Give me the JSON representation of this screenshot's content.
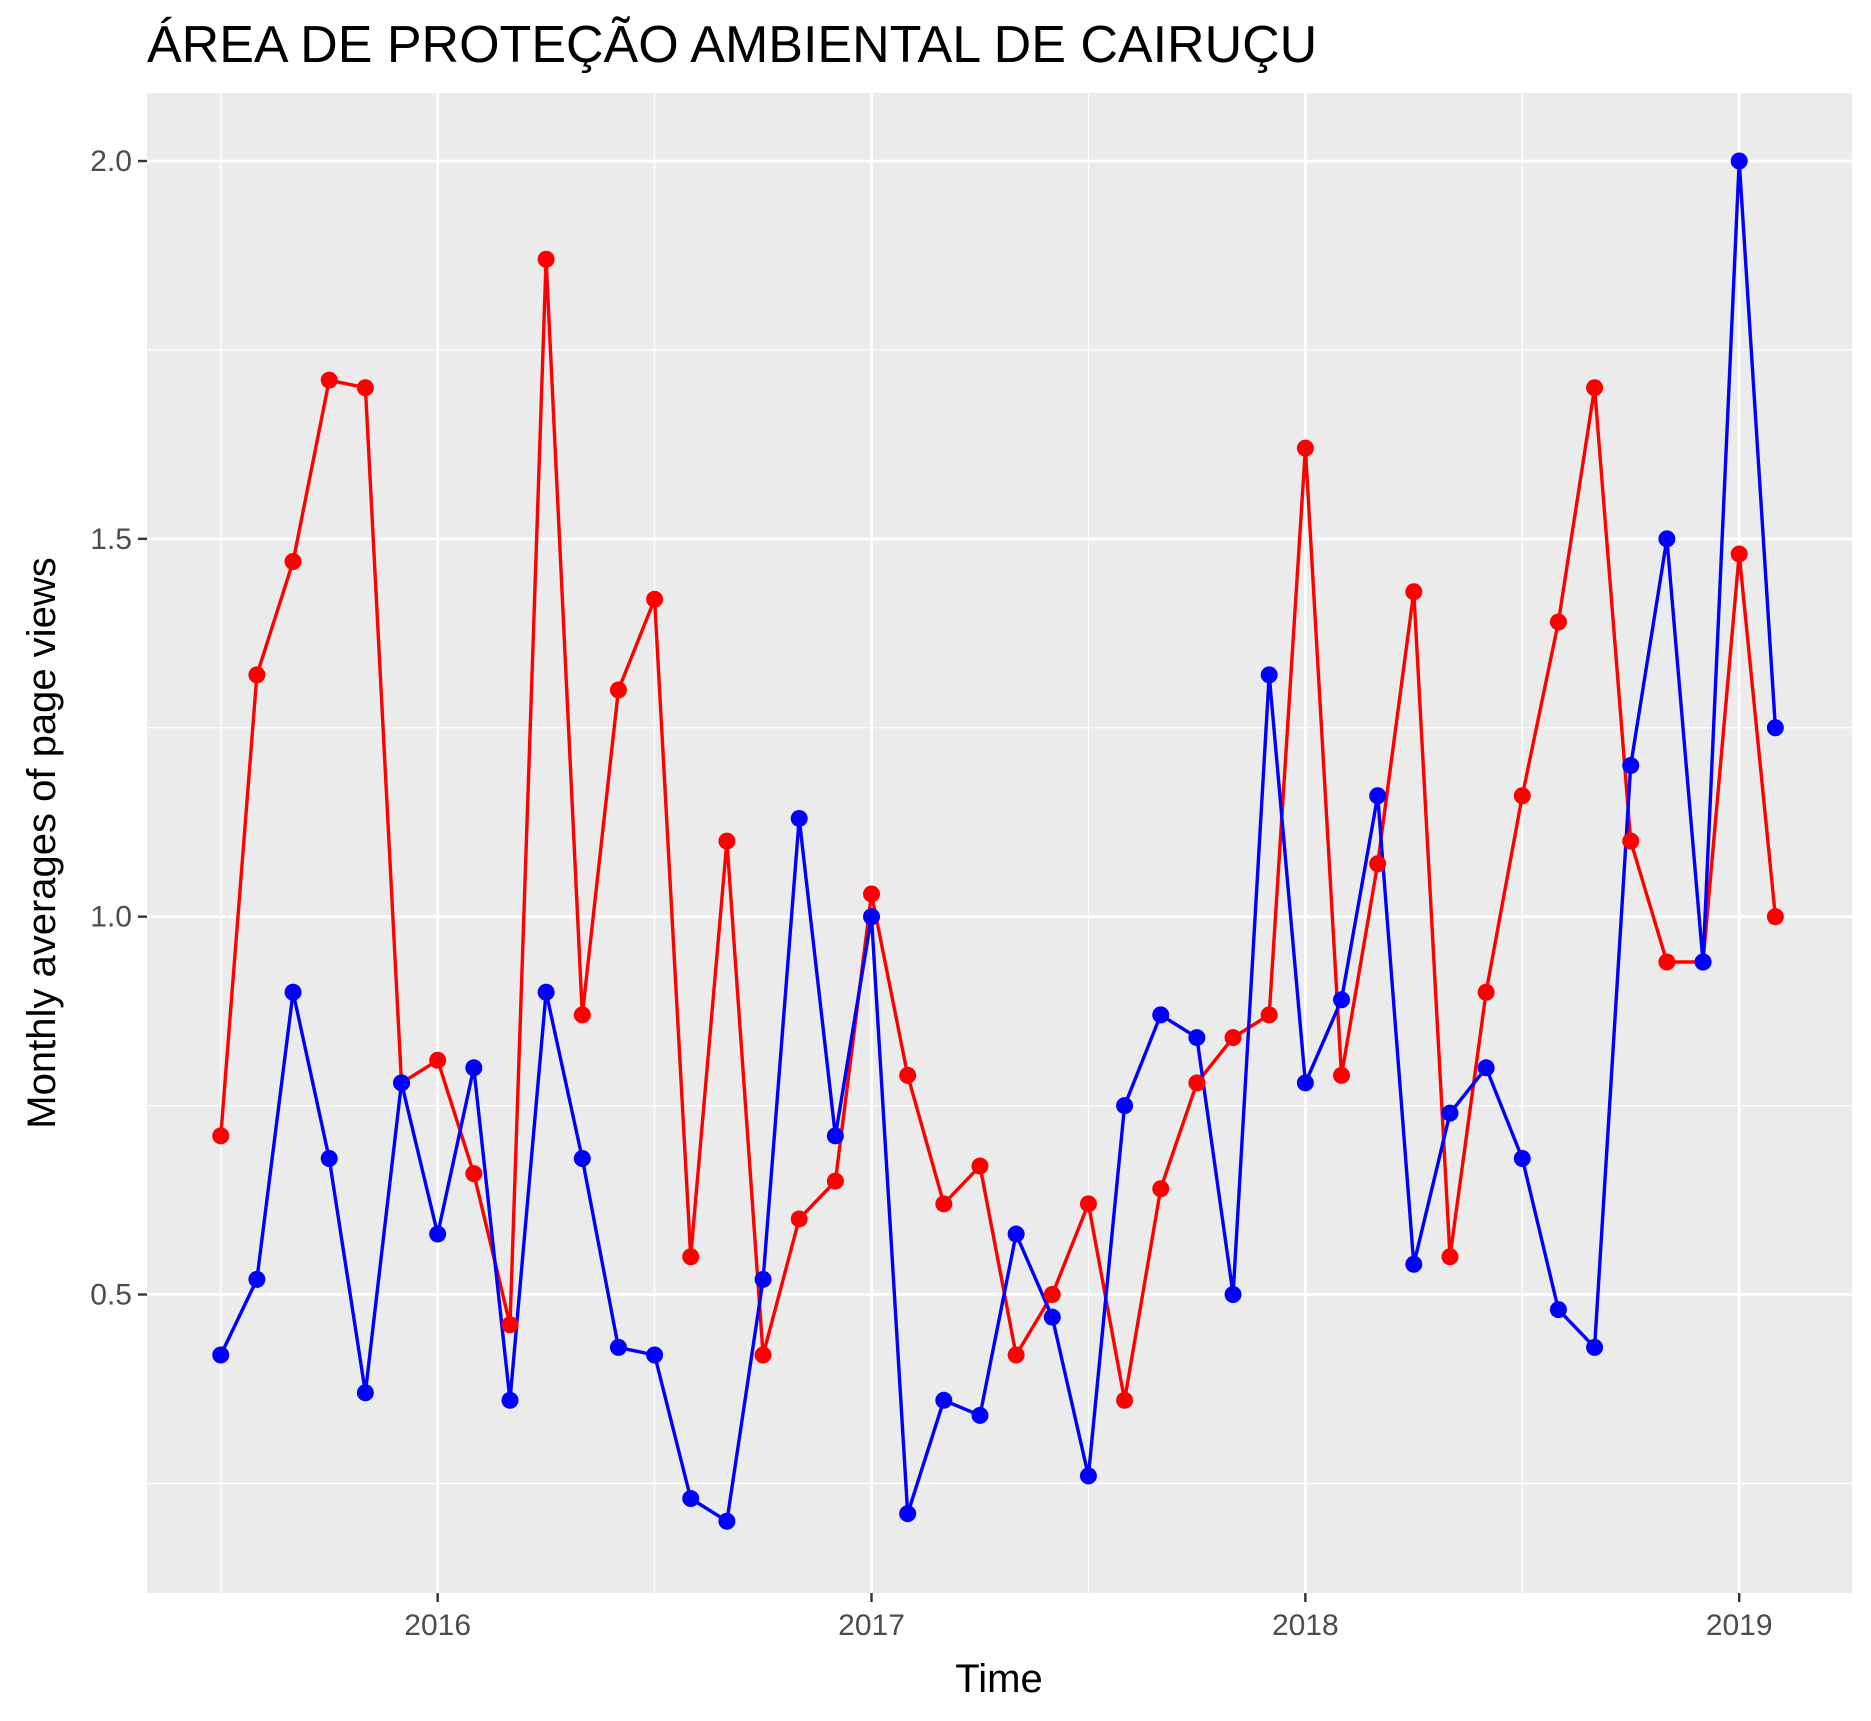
{
  "chart_data": {
    "type": "line",
    "title": "ÁREA DE PROTEÇÃO AMBIENTAL DE CAIRUÇU",
    "xlabel": "Time",
    "ylabel": "Monthly averages of page views",
    "x_ticks": [
      2016,
      2017,
      2018,
      2019
    ],
    "x_tick_labels": [
      "2016",
      "2017",
      "2018",
      "2019"
    ],
    "y_ticks": [
      0.5,
      1.0,
      1.5,
      2.0
    ],
    "y_tick_labels": [
      "0.5",
      "1.0",
      "1.5",
      "2.0"
    ],
    "xlim": [
      2015.33,
      2019.26
    ],
    "ylim": [
      0.105,
      2.09
    ],
    "grid": true,
    "legend": "none",
    "background": "#ebebeb",
    "grid_color": "#ffffff",
    "x": [
      "2015-07",
      "2015-08",
      "2015-09",
      "2015-10",
      "2015-11",
      "2015-12",
      "2016-01",
      "2016-02",
      "2016-03",
      "2016-04",
      "2016-05",
      "2016-06",
      "2016-07",
      "2016-08",
      "2016-09",
      "2016-10",
      "2016-11",
      "2016-12",
      "2017-01",
      "2017-02",
      "2017-03",
      "2017-04",
      "2017-05",
      "2017-06",
      "2017-07",
      "2017-08",
      "2017-09",
      "2017-10",
      "2017-11",
      "2017-12",
      "2018-01",
      "2018-02",
      "2018-03",
      "2018-04",
      "2018-05",
      "2018-06",
      "2018-07",
      "2018-08",
      "2018-09",
      "2018-10",
      "2018-11",
      "2018-12",
      "2019-01",
      "2019-02"
    ],
    "series": [
      {
        "color": "#ff0000",
        "values": [
          0.71,
          1.32,
          1.47,
          1.71,
          1.7,
          0.78,
          0.81,
          0.66,
          0.46,
          1.87,
          0.87,
          1.3,
          1.42,
          0.55,
          1.1,
          0.42,
          0.6,
          0.65,
          1.03,
          0.79,
          0.62,
          0.67,
          0.42,
          0.5,
          0.62,
          0.36,
          0.64,
          0.78,
          0.84,
          0.87,
          1.62,
          0.79,
          1.07,
          1.43,
          0.55,
          0.9,
          1.16,
          1.39,
          1.7,
          1.1,
          0.94,
          0.94,
          1.48,
          1.0
        ]
      },
      {
        "color": "#0000ff",
        "values": [
          0.42,
          0.52,
          0.9,
          0.68,
          0.37,
          0.78,
          0.58,
          0.8,
          0.36,
          0.9,
          0.68,
          0.43,
          0.42,
          0.23,
          0.2,
          0.52,
          1.13,
          0.71,
          1.0,
          0.21,
          0.36,
          0.34,
          0.58,
          0.47,
          0.26,
          0.75,
          0.87,
          0.84,
          0.5,
          1.32,
          0.78,
          0.89,
          1.16,
          0.54,
          0.74,
          0.8,
          0.68,
          0.48,
          0.43,
          1.2,
          1.5,
          0.94,
          2.0,
          1.25
        ]
      }
    ]
  }
}
